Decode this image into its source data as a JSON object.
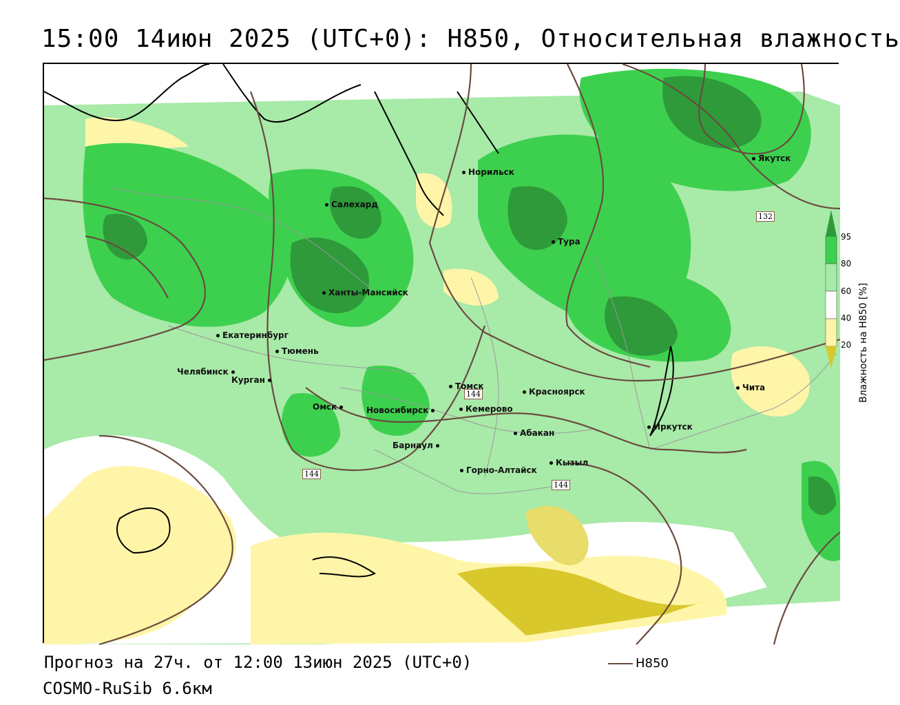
{
  "title": "15:00 14июн 2025 (UTC+0): H850, Относительная влажность",
  "footer": {
    "forecast": "Прогноз на 27ч. от 12:00 13июн 2025 (UTC+0)",
    "model": "COSMO-RuSib 6.6км"
  },
  "legend": {
    "label": "H850",
    "line_color": "#6b4a3f"
  },
  "colorbar": {
    "title": "Влажность на H850 [%]",
    "ticks": [
      "95",
      "80",
      "60",
      "40",
      "20"
    ],
    "colors": {
      "over95": "#2e9a3a",
      "c80_95": "#3dd04e",
      "c60_80": "#a8eaa8",
      "c40_60": "#ffffff",
      "c20_40": "#fff5a8",
      "under20": "#d8c82c"
    }
  },
  "isolines": [
    {
      "label": "132"
    },
    {
      "label": "144"
    },
    {
      "label": "144"
    },
    {
      "label": "144"
    }
  ],
  "cities": [
    {
      "name": "Норильск"
    },
    {
      "name": "Якутск"
    },
    {
      "name": "Салехард"
    },
    {
      "name": "Тура"
    },
    {
      "name": "Ханты-Мансийск"
    },
    {
      "name": "Екатеринбург"
    },
    {
      "name": "Тюмень"
    },
    {
      "name": "Челябинск"
    },
    {
      "name": "Курган"
    },
    {
      "name": "Омск"
    },
    {
      "name": "Новосибирск"
    },
    {
      "name": "Томск"
    },
    {
      "name": "Кемерово"
    },
    {
      "name": "Красноярск"
    },
    {
      "name": "Барнаул"
    },
    {
      "name": "Абакан"
    },
    {
      "name": "Кызыл"
    },
    {
      "name": "Горно-Алтайск"
    },
    {
      "name": "Иркутск"
    },
    {
      "name": "Чита"
    }
  ]
}
